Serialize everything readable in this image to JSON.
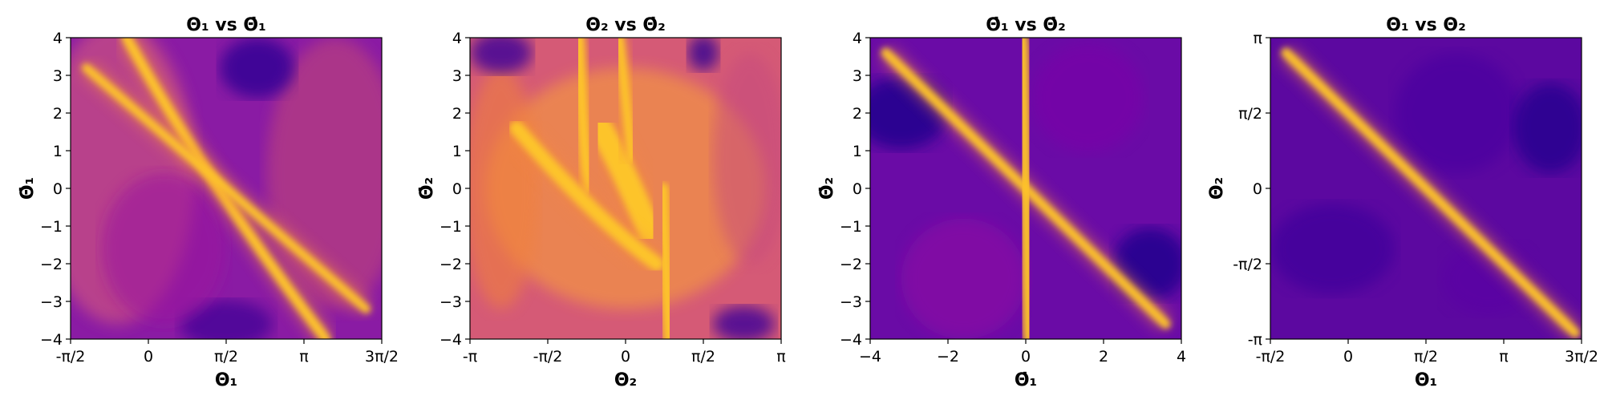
{
  "chart_data": [
    {
      "type": "heatmap",
      "colormap": "plasma",
      "title": "Θ₁ vs Θ̇₁",
      "xlabel": "Θ₁",
      "ylabel": "Θ̇₁",
      "xlim": [
        -1.5708,
        4.7124
      ],
      "ylim": [
        -4,
        4
      ],
      "x_ticks": [
        {
          "value": -1.5708,
          "label": "-π/2"
        },
        {
          "value": 0,
          "label": "0"
        },
        {
          "value": 1.5708,
          "label": "π/2"
        },
        {
          "value": 3.1416,
          "label": "π"
        },
        {
          "value": 4.7124,
          "label": "3π/2"
        }
      ],
      "y_ticks": [
        {
          "value": 4,
          "label": "4"
        },
        {
          "value": 3,
          "label": "3"
        },
        {
          "value": 2,
          "label": "2"
        },
        {
          "value": 1,
          "label": "1"
        },
        {
          "value": 0,
          "label": "0"
        },
        {
          "value": -1,
          "label": "−1"
        },
        {
          "value": -2,
          "label": "−2"
        },
        {
          "value": -3,
          "label": "−3"
        },
        {
          "value": -4,
          "label": "−4"
        }
      ]
    },
    {
      "type": "heatmap",
      "colormap": "plasma",
      "title": "Θ₂ vs Θ̇₂",
      "xlabel": "Θ₂",
      "ylabel": "Θ̇₂",
      "xlim": [
        -3.1416,
        3.1416
      ],
      "ylim": [
        -4,
        4
      ],
      "x_ticks": [
        {
          "value": -3.1416,
          "label": "-π"
        },
        {
          "value": -1.5708,
          "label": "-π/2"
        },
        {
          "value": 0,
          "label": "0"
        },
        {
          "value": 1.5708,
          "label": "π/2"
        },
        {
          "value": 3.1416,
          "label": "π"
        }
      ],
      "y_ticks": [
        {
          "value": 4,
          "label": "4"
        },
        {
          "value": 3,
          "label": "3"
        },
        {
          "value": 2,
          "label": "2"
        },
        {
          "value": 1,
          "label": "1"
        },
        {
          "value": 0,
          "label": "0"
        },
        {
          "value": -1,
          "label": "−1"
        },
        {
          "value": -2,
          "label": "−2"
        },
        {
          "value": -3,
          "label": "−3"
        },
        {
          "value": -4,
          "label": "−4"
        }
      ]
    },
    {
      "type": "heatmap",
      "colormap": "plasma",
      "title": "Θ̇₁ vs Θ̇₂",
      "xlabel": "Θ̇₁",
      "ylabel": "Θ̇₂",
      "xlim": [
        -4,
        4
      ],
      "ylim": [
        -4,
        4
      ],
      "x_ticks": [
        {
          "value": -4,
          "label": "−4"
        },
        {
          "value": -2,
          "label": "−2"
        },
        {
          "value": 0,
          "label": "0"
        },
        {
          "value": 2,
          "label": "2"
        },
        {
          "value": 4,
          "label": "4"
        }
      ],
      "y_ticks": [
        {
          "value": 4,
          "label": "4"
        },
        {
          "value": 3,
          "label": "3"
        },
        {
          "value": 2,
          "label": "2"
        },
        {
          "value": 1,
          "label": "1"
        },
        {
          "value": 0,
          "label": "0"
        },
        {
          "value": -1,
          "label": "−1"
        },
        {
          "value": -2,
          "label": "−2"
        },
        {
          "value": -3,
          "label": "−3"
        },
        {
          "value": -4,
          "label": "−4"
        }
      ]
    },
    {
      "type": "heatmap",
      "colormap": "plasma",
      "title": "Θ₁ vs Θ₂",
      "xlabel": "Θ₁",
      "ylabel": "Θ₂",
      "xlim": [
        -1.5708,
        4.7124
      ],
      "ylim": [
        -3.1416,
        3.1416
      ],
      "x_ticks": [
        {
          "value": -1.5708,
          "label": "-π/2"
        },
        {
          "value": 0,
          "label": "0"
        },
        {
          "value": 1.5708,
          "label": "π/2"
        },
        {
          "value": 3.1416,
          "label": "π"
        },
        {
          "value": 4.7124,
          "label": "3π/2"
        }
      ],
      "y_ticks": [
        {
          "value": 3.1416,
          "label": "π"
        },
        {
          "value": 1.5708,
          "label": "π/2"
        },
        {
          "value": 0,
          "label": "0"
        },
        {
          "value": -1.5708,
          "label": "-π/2"
        },
        {
          "value": -3.1416,
          "label": "-π"
        }
      ]
    }
  ]
}
